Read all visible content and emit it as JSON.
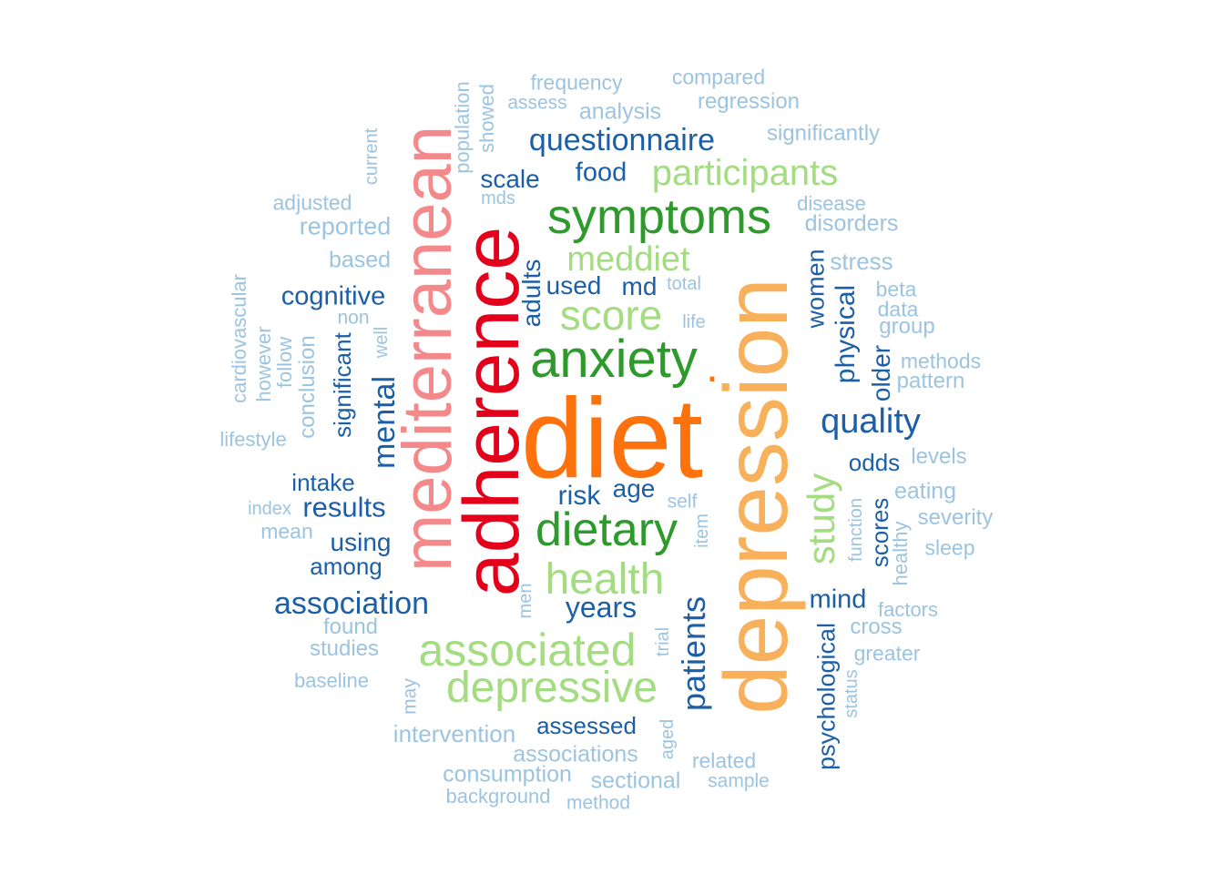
{
  "cloud": {
    "words": {
      "diet": "diet",
      "depression": "depression",
      "adherence": "adherence",
      "mediterranean": "mediterranean",
      "symptoms": "symptoms",
      "anxiety": "anxiety",
      "dietary": "dietary",
      "health": "health",
      "associated": "associated",
      "depressive": "depressive",
      "score": "score",
      "meddiet": "meddiet",
      "participants": "participants",
      "study": "study",
      "association": "association",
      "questionnaire": "questionnaire",
      "quality": "quality",
      "patients": "patients",
      "cognitive": "cognitive",
      "mental": "mental",
      "years": "years",
      "results": "results",
      "food": "food",
      "scale": "scale",
      "used": "used",
      "md": "md",
      "adults": "adults",
      "risk": "risk",
      "age": "age",
      "intake": "intake",
      "using": "using",
      "among": "among",
      "significant": "significant",
      "physical": "physical",
      "women": "women",
      "odds": "odds",
      "mind": "mind",
      "psychological": "psychological",
      "scores": "scores",
      "older": "older",
      "assessed": "assessed",
      "frequency": "frequency",
      "compared": "compared",
      "assess": "assess",
      "analysis": "analysis",
      "regression": "regression",
      "significantly": "significantly",
      "population": "population",
      "showed": "showed",
      "current": "current",
      "adjusted": "adjusted",
      "mds": "mds",
      "reported": "reported",
      "disease": "disease",
      "disorders": "disorders",
      "based": "based",
      "stress": "stress",
      "cardiovascular": "cardiovascular",
      "non": "non",
      "total": "total",
      "beta": "beta",
      "data": "data",
      "group": "group",
      "life": "life",
      "however": "however",
      "follow": "follow",
      "well": "well",
      "conclusion": "conclusion",
      "methods": "methods",
      "pattern": "pattern",
      "lifestyle": "lifestyle",
      "levels": "levels",
      "eating": "eating",
      "severity": "severity",
      "index": "index",
      "mean": "mean",
      "self": "self",
      "item": "item",
      "function": "function",
      "healthy": "healthy",
      "sleep": "sleep",
      "men": "men",
      "factors": "factors",
      "found": "found",
      "cross": "cross",
      "studies": "studies",
      "trial": "trial",
      "greater": "greater",
      "baseline": "baseline",
      "status": "status",
      "may": "may",
      "intervention": "intervention",
      "associations": "associations",
      "aged": "aged",
      "related": "related",
      "consumption": "consumption",
      "sectional": "sectional",
      "sample": "sample",
      "background": "background",
      "method": "method",
      "dot": "."
    }
  }
}
